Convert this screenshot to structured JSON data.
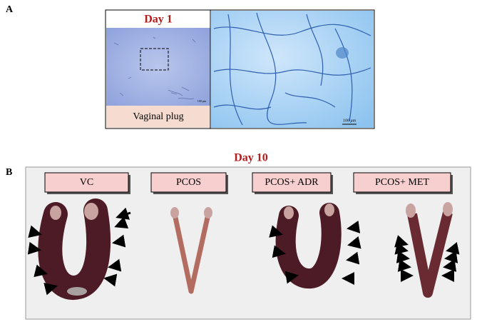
{
  "panel_a": {
    "label": "A",
    "title": "Day 1",
    "caption": "Vaginal plug",
    "scale_bars": [
      "100 µm",
      "100 µm"
    ]
  },
  "panel_b": {
    "label": "B",
    "title": "Day 10",
    "groups": [
      "VC",
      "PCOS",
      "PCOS+ ADR",
      "PCOS+ MET"
    ]
  }
}
